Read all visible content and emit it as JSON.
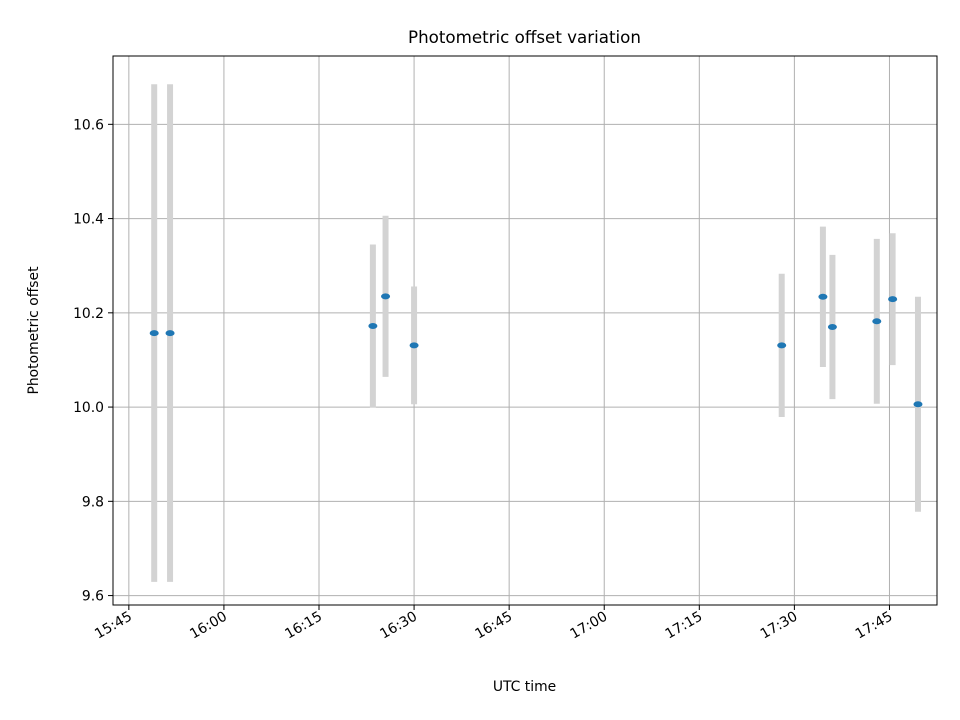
{
  "chart_data": {
    "type": "scatter",
    "title": "Photometric offset variation",
    "xlabel": "UTC time",
    "ylabel": "Photometric offset",
    "x_is_time": true,
    "xlim": [
      "15:42:30",
      "17:52:30"
    ],
    "ylim": [
      9.58,
      10.745
    ],
    "xticks": [
      "15:45",
      "16:00",
      "16:15",
      "16:30",
      "16:45",
      "17:00",
      "17:15",
      "17:30",
      "17:45"
    ],
    "yticks": [
      9.6,
      9.8,
      10.0,
      10.2,
      10.4,
      10.6
    ],
    "ytick_labels": [
      "9.6",
      "9.8",
      "10.0",
      "10.2",
      "10.4",
      "10.6"
    ],
    "grid": true,
    "colors": {
      "point": "#1f77b4",
      "errorbar": "#d3d3d3",
      "grid": "#b0b0b0"
    },
    "points": [
      {
        "x": "15:49:00",
        "y": 10.157,
        "err": 0.528
      },
      {
        "x": "15:51:30",
        "y": 10.157,
        "err": 0.528
      },
      {
        "x": "16:23:30",
        "y": 10.172,
        "err": 0.173
      },
      {
        "x": "16:25:30",
        "y": 10.235,
        "err": 0.171
      },
      {
        "x": "16:30:00",
        "y": 10.131,
        "err": 0.125
      },
      {
        "x": "17:28:00",
        "y": 10.131,
        "err": 0.152
      },
      {
        "x": "17:34:30",
        "y": 10.234,
        "err": 0.149
      },
      {
        "x": "17:36:00",
        "y": 10.17,
        "err": 0.153
      },
      {
        "x": "17:43:00",
        "y": 10.182,
        "err": 0.175
      },
      {
        "x": "17:45:30",
        "y": 10.229,
        "err": 0.14
      },
      {
        "x": "17:49:30",
        "y": 10.006,
        "err": 0.228
      }
    ]
  }
}
